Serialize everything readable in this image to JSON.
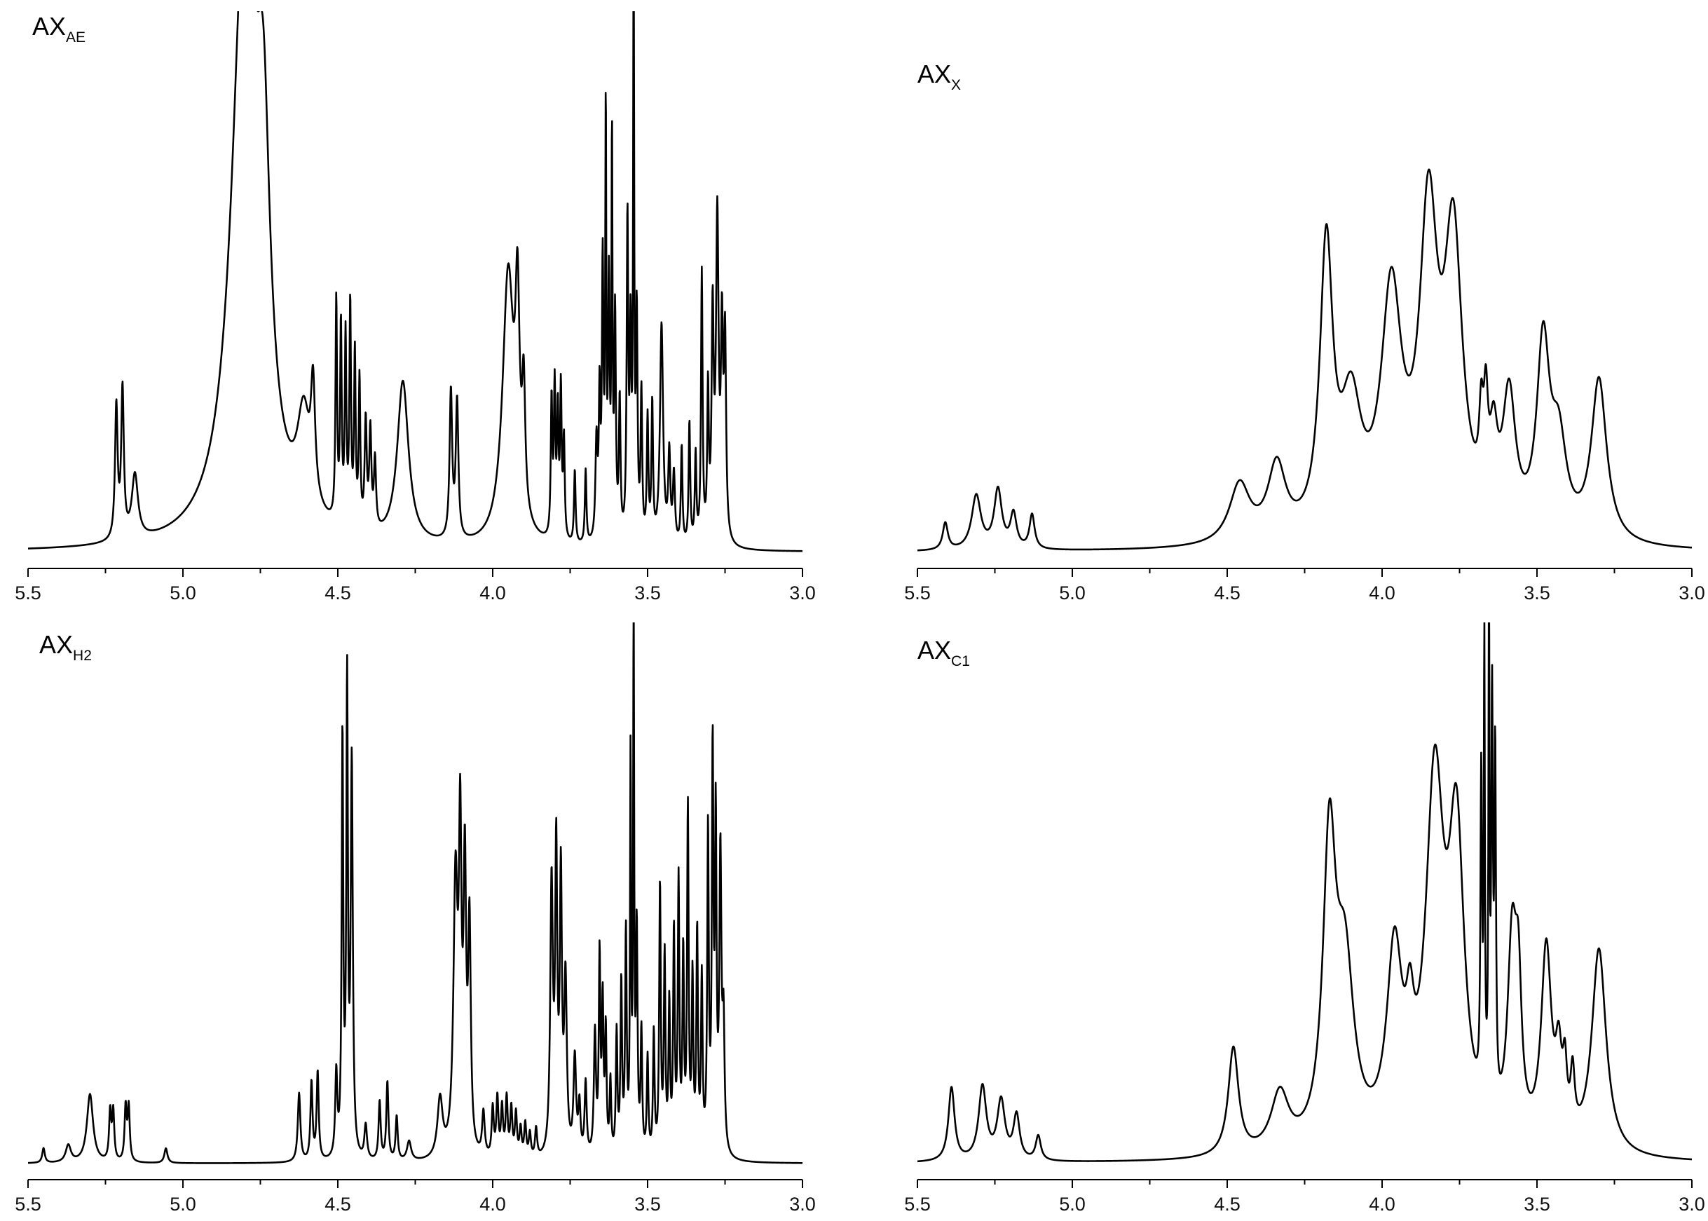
{
  "chart_data": [
    {
      "type": "line",
      "title": "AX",
      "title_sub": "AE",
      "x_ticks": [
        "5.5",
        "5.0",
        "4.5",
        "4.0",
        "3.5",
        "3.0"
      ],
      "xlim": [
        5.5,
        3.0
      ],
      "ylim": [
        0,
        1
      ],
      "grid": false,
      "peaks": [
        {
          "x": 5.215,
          "h": 0.27,
          "w": 0.005
        },
        {
          "x": 5.195,
          "h": 0.3,
          "w": 0.005
        },
        {
          "x": 5.155,
          "h": 0.13,
          "w": 0.012
        },
        {
          "x": 4.8,
          "h": 1.25,
          "w": 0.05
        },
        {
          "x": 4.74,
          "h": 0.55,
          "w": 0.025
        },
        {
          "x": 4.61,
          "h": 0.2,
          "w": 0.025
        },
        {
          "x": 4.58,
          "h": 0.22,
          "w": 0.008
        },
        {
          "x": 4.505,
          "h": 0.45,
          "w": 0.003
        },
        {
          "x": 4.49,
          "h": 0.4,
          "w": 0.003
        },
        {
          "x": 4.475,
          "h": 0.38,
          "w": 0.003
        },
        {
          "x": 4.46,
          "h": 0.45,
          "w": 0.003
        },
        {
          "x": 4.445,
          "h": 0.35,
          "w": 0.003
        },
        {
          "x": 4.43,
          "h": 0.3,
          "w": 0.003
        },
        {
          "x": 4.41,
          "h": 0.22,
          "w": 0.004
        },
        {
          "x": 4.395,
          "h": 0.2,
          "w": 0.004
        },
        {
          "x": 4.38,
          "h": 0.14,
          "w": 0.004
        },
        {
          "x": 4.29,
          "h": 0.33,
          "w": 0.022
        },
        {
          "x": 4.135,
          "h": 0.3,
          "w": 0.005
        },
        {
          "x": 4.115,
          "h": 0.28,
          "w": 0.005
        },
        {
          "x": 3.95,
          "h": 0.55,
          "w": 0.022
        },
        {
          "x": 3.92,
          "h": 0.4,
          "w": 0.008
        },
        {
          "x": 3.9,
          "h": 0.25,
          "w": 0.006
        },
        {
          "x": 3.81,
          "h": 0.28,
          "w": 0.003
        },
        {
          "x": 3.8,
          "h": 0.3,
          "w": 0.003
        },
        {
          "x": 3.79,
          "h": 0.25,
          "w": 0.003
        },
        {
          "x": 3.78,
          "h": 0.3,
          "w": 0.003
        },
        {
          "x": 3.77,
          "h": 0.2,
          "w": 0.003
        },
        {
          "x": 3.735,
          "h": 0.15,
          "w": 0.003
        },
        {
          "x": 3.7,
          "h": 0.15,
          "w": 0.003
        },
        {
          "x": 3.665,
          "h": 0.2,
          "w": 0.004
        },
        {
          "x": 3.655,
          "h": 0.28,
          "w": 0.003
        },
        {
          "x": 3.645,
          "h": 0.55,
          "w": 0.003
        },
        {
          "x": 3.635,
          "h": 0.85,
          "w": 0.002
        },
        {
          "x": 3.625,
          "h": 0.5,
          "w": 0.003
        },
        {
          "x": 3.615,
          "h": 0.8,
          "w": 0.002
        },
        {
          "x": 3.605,
          "h": 0.45,
          "w": 0.003
        },
        {
          "x": 3.59,
          "h": 0.28,
          "w": 0.003
        },
        {
          "x": 3.565,
          "h": 0.65,
          "w": 0.003
        },
        {
          "x": 3.555,
          "h": 0.4,
          "w": 0.003
        },
        {
          "x": 3.545,
          "h": 1.2,
          "w": 0.002
        },
        {
          "x": 3.535,
          "h": 0.45,
          "w": 0.003
        },
        {
          "x": 3.52,
          "h": 0.3,
          "w": 0.003
        },
        {
          "x": 3.5,
          "h": 0.25,
          "w": 0.003
        },
        {
          "x": 3.485,
          "h": 0.28,
          "w": 0.003
        },
        {
          "x": 3.455,
          "h": 0.45,
          "w": 0.006
        },
        {
          "x": 3.43,
          "h": 0.18,
          "w": 0.004
        },
        {
          "x": 3.415,
          "h": 0.14,
          "w": 0.004
        },
        {
          "x": 3.39,
          "h": 0.2,
          "w": 0.003
        },
        {
          "x": 3.365,
          "h": 0.25,
          "w": 0.003
        },
        {
          "x": 3.345,
          "h": 0.18,
          "w": 0.003
        },
        {
          "x": 3.325,
          "h": 0.55,
          "w": 0.003
        },
        {
          "x": 3.305,
          "h": 0.3,
          "w": 0.003
        },
        {
          "x": 3.29,
          "h": 0.45,
          "w": 0.004
        },
        {
          "x": 3.275,
          "h": 0.65,
          "w": 0.005
        },
        {
          "x": 3.26,
          "h": 0.4,
          "w": 0.004
        },
        {
          "x": 3.25,
          "h": 0.4,
          "w": 0.004
        }
      ]
    },
    {
      "type": "line",
      "title": "AX",
      "title_sub": "X",
      "x_ticks": [
        "5.5",
        "5.0",
        "4.5",
        "4.0",
        "3.5",
        "3.0"
      ],
      "xlim": [
        5.5,
        3.0
      ],
      "ylim": [
        0,
        1
      ],
      "grid": false,
      "peaks": [
        {
          "x": 5.41,
          "h": 0.055,
          "w": 0.01
        },
        {
          "x": 5.31,
          "h": 0.11,
          "w": 0.018
        },
        {
          "x": 5.24,
          "h": 0.12,
          "w": 0.015
        },
        {
          "x": 5.19,
          "h": 0.07,
          "w": 0.012
        },
        {
          "x": 5.13,
          "h": 0.07,
          "w": 0.01
        },
        {
          "x": 4.46,
          "h": 0.12,
          "w": 0.04
        },
        {
          "x": 4.34,
          "h": 0.15,
          "w": 0.035
        },
        {
          "x": 4.18,
          "h": 0.58,
          "w": 0.025
        },
        {
          "x": 4.1,
          "h": 0.25,
          "w": 0.04
        },
        {
          "x": 3.97,
          "h": 0.48,
          "w": 0.04
        },
        {
          "x": 3.85,
          "h": 0.62,
          "w": 0.035
        },
        {
          "x": 3.77,
          "h": 0.58,
          "w": 0.035
        },
        {
          "x": 3.68,
          "h": 0.15,
          "w": 0.008
        },
        {
          "x": 3.665,
          "h": 0.18,
          "w": 0.008
        },
        {
          "x": 3.64,
          "h": 0.15,
          "w": 0.015
        },
        {
          "x": 3.59,
          "h": 0.27,
          "w": 0.025
        },
        {
          "x": 3.48,
          "h": 0.38,
          "w": 0.025
        },
        {
          "x": 3.43,
          "h": 0.18,
          "w": 0.03
        },
        {
          "x": 3.3,
          "h": 0.33,
          "w": 0.03
        }
      ]
    },
    {
      "type": "line",
      "title": "AX",
      "title_sub": "H2",
      "x_ticks": [
        "5.5",
        "5.0",
        "4.5",
        "4.0",
        "3.5",
        "3.0"
      ],
      "xlim": [
        5.5,
        3.0
      ],
      "ylim": [
        0,
        1
      ],
      "grid": false,
      "peaks": [
        {
          "x": 5.45,
          "h": 0.03,
          "w": 0.005
        },
        {
          "x": 5.37,
          "h": 0.035,
          "w": 0.01
        },
        {
          "x": 5.3,
          "h": 0.14,
          "w": 0.012
        },
        {
          "x": 5.235,
          "h": 0.1,
          "w": 0.004
        },
        {
          "x": 5.225,
          "h": 0.1,
          "w": 0.004
        },
        {
          "x": 5.185,
          "h": 0.11,
          "w": 0.004
        },
        {
          "x": 5.175,
          "h": 0.11,
          "w": 0.004
        },
        {
          "x": 5.055,
          "h": 0.03,
          "w": 0.006
        },
        {
          "x": 4.625,
          "h": 0.14,
          "w": 0.005
        },
        {
          "x": 4.585,
          "h": 0.16,
          "w": 0.004
        },
        {
          "x": 4.565,
          "h": 0.18,
          "w": 0.004
        },
        {
          "x": 4.505,
          "h": 0.17,
          "w": 0.004
        },
        {
          "x": 4.485,
          "h": 0.85,
          "w": 0.003
        },
        {
          "x": 4.47,
          "h": 0.95,
          "w": 0.003
        },
        {
          "x": 4.455,
          "h": 0.8,
          "w": 0.004
        },
        {
          "x": 4.41,
          "h": 0.07,
          "w": 0.005
        },
        {
          "x": 4.365,
          "h": 0.12,
          "w": 0.004
        },
        {
          "x": 4.34,
          "h": 0.16,
          "w": 0.004
        },
        {
          "x": 4.31,
          "h": 0.09,
          "w": 0.004
        },
        {
          "x": 4.27,
          "h": 0.04,
          "w": 0.008
        },
        {
          "x": 4.17,
          "h": 0.12,
          "w": 0.01
        },
        {
          "x": 4.12,
          "h": 0.55,
          "w": 0.008
        },
        {
          "x": 4.105,
          "h": 0.6,
          "w": 0.005
        },
        {
          "x": 4.09,
          "h": 0.55,
          "w": 0.005
        },
        {
          "x": 4.075,
          "h": 0.45,
          "w": 0.005
        },
        {
          "x": 4.03,
          "h": 0.09,
          "w": 0.005
        },
        {
          "x": 4.0,
          "h": 0.1,
          "w": 0.004
        },
        {
          "x": 3.985,
          "h": 0.12,
          "w": 0.004
        },
        {
          "x": 3.97,
          "h": 0.1,
          "w": 0.004
        },
        {
          "x": 3.955,
          "h": 0.12,
          "w": 0.004
        },
        {
          "x": 3.94,
          "h": 0.1,
          "w": 0.004
        },
        {
          "x": 3.925,
          "h": 0.09,
          "w": 0.004
        },
        {
          "x": 3.91,
          "h": 0.06,
          "w": 0.004
        },
        {
          "x": 3.895,
          "h": 0.07,
          "w": 0.004
        },
        {
          "x": 3.88,
          "h": 0.05,
          "w": 0.004
        },
        {
          "x": 3.86,
          "h": 0.06,
          "w": 0.004
        },
        {
          "x": 3.81,
          "h": 0.55,
          "w": 0.005
        },
        {
          "x": 3.795,
          "h": 0.6,
          "w": 0.004
        },
        {
          "x": 3.78,
          "h": 0.55,
          "w": 0.004
        },
        {
          "x": 3.765,
          "h": 0.35,
          "w": 0.005
        },
        {
          "x": 3.735,
          "h": 0.2,
          "w": 0.005
        },
        {
          "x": 3.72,
          "h": 0.1,
          "w": 0.004
        },
        {
          "x": 3.7,
          "h": 0.15,
          "w": 0.004
        },
        {
          "x": 3.67,
          "h": 0.25,
          "w": 0.004
        },
        {
          "x": 3.655,
          "h": 0.4,
          "w": 0.003
        },
        {
          "x": 3.645,
          "h": 0.3,
          "w": 0.003
        },
        {
          "x": 3.635,
          "h": 0.25,
          "w": 0.003
        },
        {
          "x": 3.62,
          "h": 0.15,
          "w": 0.003
        },
        {
          "x": 3.6,
          "h": 0.25,
          "w": 0.003
        },
        {
          "x": 3.585,
          "h": 0.35,
          "w": 0.003
        },
        {
          "x": 3.57,
          "h": 0.45,
          "w": 0.003
        },
        {
          "x": 3.555,
          "h": 0.8,
          "w": 0.002
        },
        {
          "x": 3.545,
          "h": 1.1,
          "w": 0.002
        },
        {
          "x": 3.535,
          "h": 0.45,
          "w": 0.003
        },
        {
          "x": 3.52,
          "h": 0.25,
          "w": 0.003
        },
        {
          "x": 3.5,
          "h": 0.2,
          "w": 0.003
        },
        {
          "x": 3.48,
          "h": 0.25,
          "w": 0.003
        },
        {
          "x": 3.46,
          "h": 0.55,
          "w": 0.003
        },
        {
          "x": 3.445,
          "h": 0.4,
          "w": 0.003
        },
        {
          "x": 3.43,
          "h": 0.3,
          "w": 0.003
        },
        {
          "x": 3.415,
          "h": 0.45,
          "w": 0.003
        },
        {
          "x": 3.4,
          "h": 0.55,
          "w": 0.003
        },
        {
          "x": 3.385,
          "h": 0.4,
          "w": 0.003
        },
        {
          "x": 3.37,
          "h": 0.7,
          "w": 0.003
        },
        {
          "x": 3.355,
          "h": 0.35,
          "w": 0.003
        },
        {
          "x": 3.34,
          "h": 0.45,
          "w": 0.003
        },
        {
          "x": 3.325,
          "h": 0.35,
          "w": 0.003
        },
        {
          "x": 3.305,
          "h": 0.65,
          "w": 0.003
        },
        {
          "x": 3.29,
          "h": 0.8,
          "w": 0.003
        },
        {
          "x": 3.28,
          "h": 0.65,
          "w": 0.003
        },
        {
          "x": 3.265,
          "h": 0.6,
          "w": 0.004
        },
        {
          "x": 3.255,
          "h": 0.25,
          "w": 0.004
        }
      ]
    },
    {
      "type": "line",
      "title": "AX",
      "title_sub": "C1",
      "x_ticks": [
        "5.5",
        "5.0",
        "4.5",
        "4.0",
        "3.5",
        "3.0"
      ],
      "xlim": [
        5.5,
        3.0
      ],
      "ylim": [
        0,
        1
      ],
      "grid": false,
      "peaks": [
        {
          "x": 5.39,
          "h": 0.15,
          "w": 0.012
        },
        {
          "x": 5.29,
          "h": 0.15,
          "w": 0.015
        },
        {
          "x": 5.23,
          "h": 0.12,
          "w": 0.015
        },
        {
          "x": 5.18,
          "h": 0.09,
          "w": 0.012
        },
        {
          "x": 5.11,
          "h": 0.05,
          "w": 0.01
        },
        {
          "x": 4.48,
          "h": 0.22,
          "w": 0.02
        },
        {
          "x": 4.33,
          "h": 0.12,
          "w": 0.035
        },
        {
          "x": 4.17,
          "h": 0.6,
          "w": 0.025
        },
        {
          "x": 4.12,
          "h": 0.35,
          "w": 0.035
        },
        {
          "x": 3.96,
          "h": 0.38,
          "w": 0.03
        },
        {
          "x": 3.91,
          "h": 0.15,
          "w": 0.015
        },
        {
          "x": 3.83,
          "h": 0.72,
          "w": 0.035
        },
        {
          "x": 3.76,
          "h": 0.6,
          "w": 0.03
        },
        {
          "x": 3.68,
          "h": 0.65,
          "w": 0.003
        },
        {
          "x": 3.67,
          "h": 0.9,
          "w": 0.002
        },
        {
          "x": 3.655,
          "h": 1.0,
          "w": 0.002
        },
        {
          "x": 3.645,
          "h": 0.8,
          "w": 0.003
        },
        {
          "x": 3.635,
          "h": 0.7,
          "w": 0.003
        },
        {
          "x": 3.58,
          "h": 0.4,
          "w": 0.018
        },
        {
          "x": 3.56,
          "h": 0.25,
          "w": 0.012
        },
        {
          "x": 3.47,
          "h": 0.4,
          "w": 0.02
        },
        {
          "x": 3.43,
          "h": 0.15,
          "w": 0.012
        },
        {
          "x": 3.41,
          "h": 0.12,
          "w": 0.008
        },
        {
          "x": 3.385,
          "h": 0.12,
          "w": 0.008
        },
        {
          "x": 3.3,
          "h": 0.42,
          "w": 0.028
        }
      ]
    }
  ]
}
